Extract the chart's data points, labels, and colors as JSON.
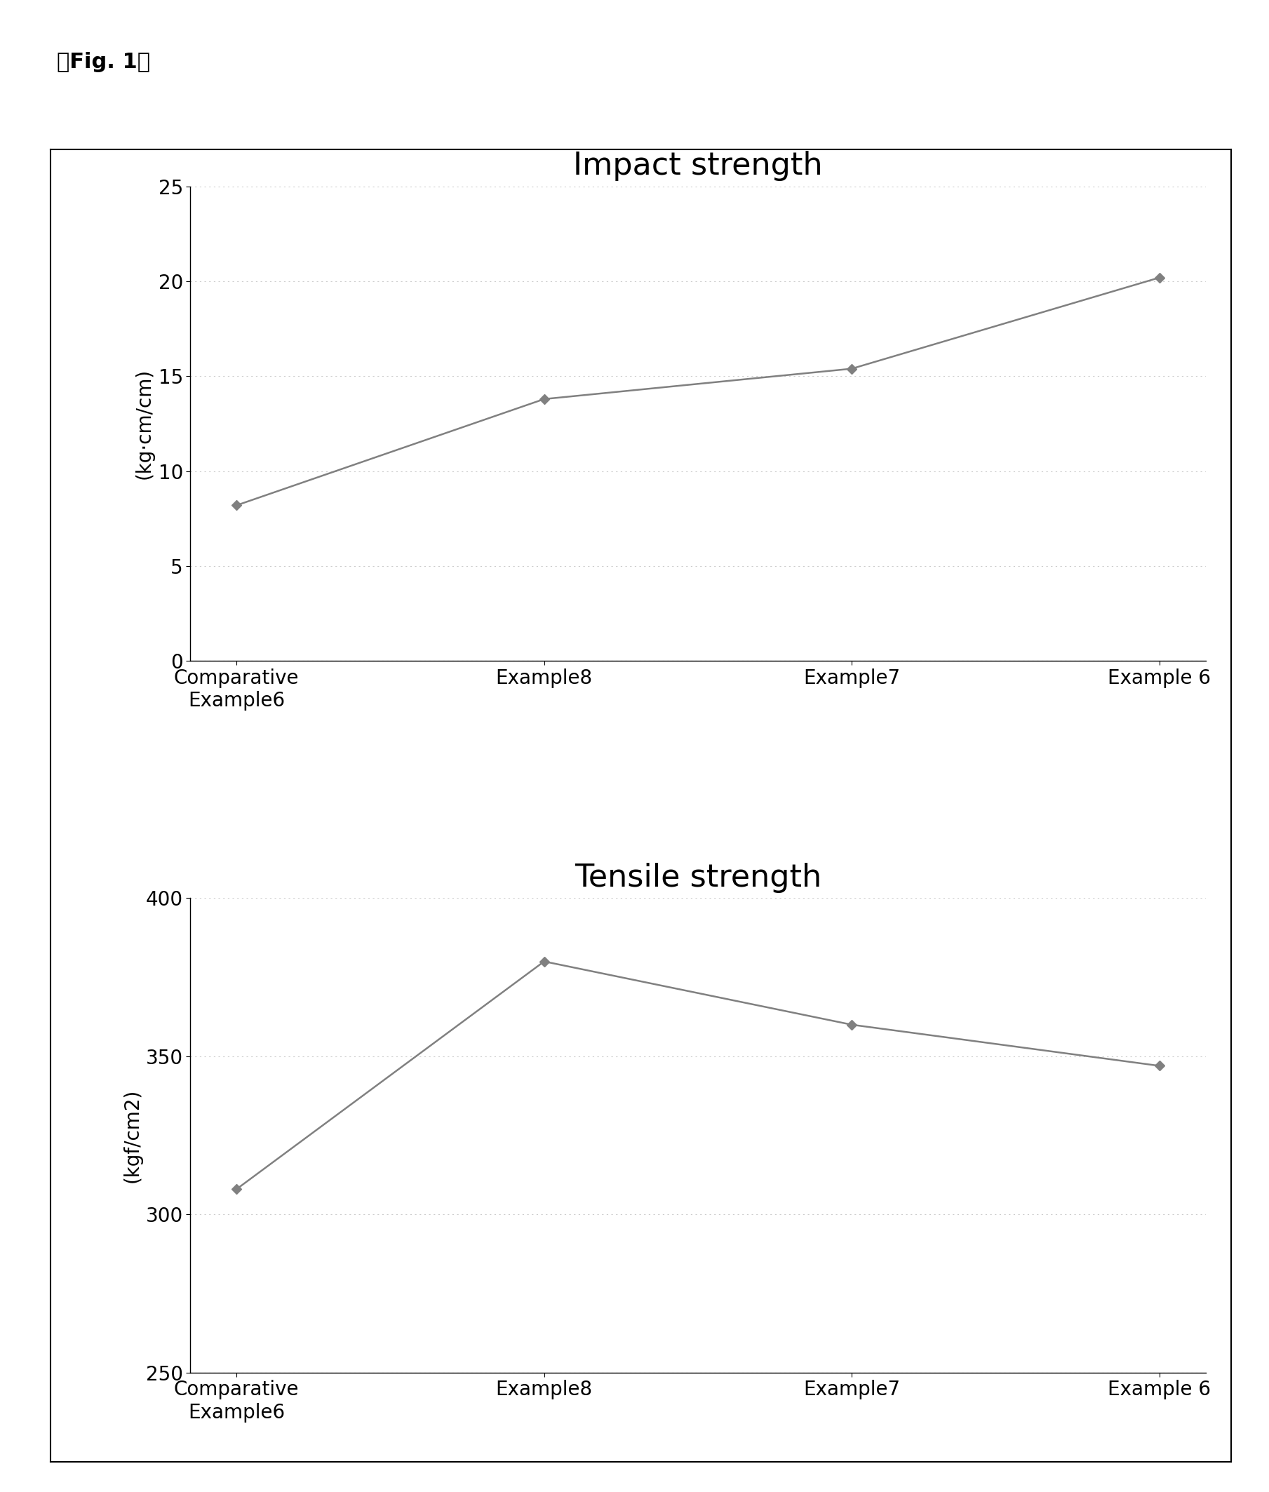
{
  "fig_label_text": "【Fig. 1】",
  "categories": [
    "Comparative\nExample6",
    "Example8",
    "Example7",
    "Example 6"
  ],
  "impact_values": [
    8.2,
    13.8,
    15.4,
    20.2
  ],
  "impact_title": "Impact strength",
  "impact_ylabel": "(kg·cm/cm)",
  "impact_ylim": [
    0,
    25
  ],
  "impact_yticks": [
    0,
    5,
    10,
    15,
    20,
    25
  ],
  "tensile_values": [
    308,
    380,
    360,
    347
  ],
  "tensile_title": "Tensile strength",
  "tensile_ylabel": "(kgf/cm2)",
  "tensile_ylim": [
    250,
    400
  ],
  "tensile_yticks": [
    250,
    300,
    350,
    400
  ],
  "line_color": "#808080",
  "marker_color": "#808080",
  "marker_style": "D",
  "marker_size": 7,
  "line_width": 1.8,
  "title_fontsize": 32,
  "axis_label_fontsize": 20,
  "tick_fontsize": 20,
  "xlabel_fontsize": 20,
  "fig_label_fontsize": 22,
  "background_color": "#ffffff",
  "box_background": "#ffffff"
}
